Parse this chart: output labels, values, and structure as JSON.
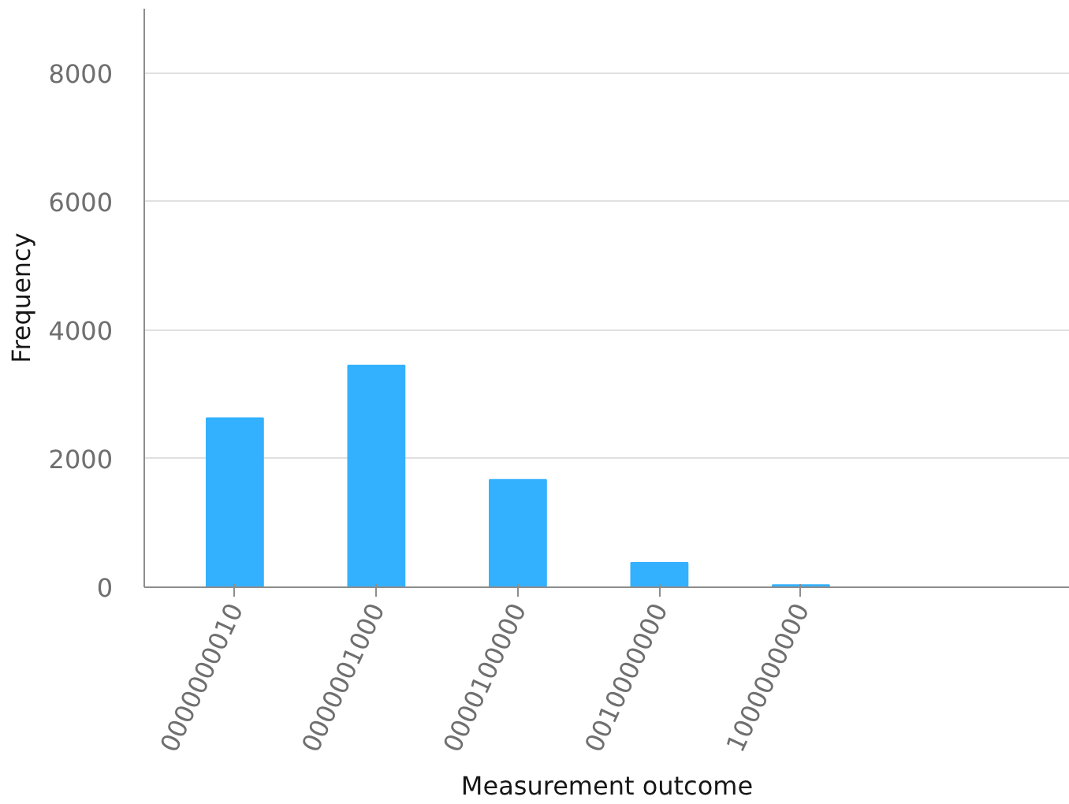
{
  "chart_data": {
    "type": "bar",
    "xlabel": "Measurement outcome",
    "ylabel": "Frequency",
    "categories": [
      "0000000010",
      "0000001000",
      "0000100000",
      "0010000000",
      "1000000000"
    ],
    "values": [
      2630,
      3450,
      1670,
      380,
      35
    ],
    "color": "#33b1ff",
    "ylim": [
      0,
      9000
    ],
    "yticks": [
      0,
      2000,
      4000,
      6000,
      8000
    ],
    "grid": "y"
  }
}
